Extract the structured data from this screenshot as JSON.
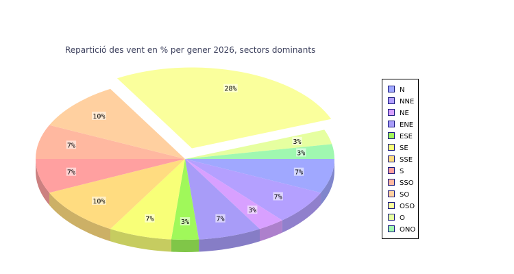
{
  "chart_data": {
    "type": "pie",
    "title": "Repartició des vent en % per gener 2026, sectors dominants",
    "slices": [
      {
        "name": "N",
        "value": 7,
        "label": "7%",
        "color": "#a0a8ff"
      },
      {
        "name": "NNE",
        "value": 7,
        "label": "7%",
        "color": "#b4a0ff"
      },
      {
        "name": "NE",
        "value": 3,
        "label": "3%",
        "color": "#d8a0ff"
      },
      {
        "name": "ENE",
        "value": 7,
        "label": "7%",
        "color": "#a89cf8"
      },
      {
        "name": "ESE",
        "value": 3,
        "label": "3%",
        "color": "#a0f85a"
      },
      {
        "name": "SE",
        "value": 7,
        "label": "7%",
        "color": "#f8ff78"
      },
      {
        "name": "SSE",
        "value": 10,
        "label": "10%",
        "color": "#ffdc80"
      },
      {
        "name": "S",
        "value": 7,
        "label": "7%",
        "color": "#ffa0a0"
      },
      {
        "name": "SSO",
        "value": 7,
        "label": "7%",
        "color": "#ffb8a0"
      },
      {
        "name": "SO",
        "value": 10,
        "label": "10%",
        "color": "#ffd0a0"
      },
      {
        "name": "OSO",
        "value": 28,
        "label": "28%",
        "color": "#faff9c"
      },
      {
        "name": "O",
        "value": 3,
        "label": "3%",
        "color": "#e6ffa0"
      },
      {
        "name": "ONO",
        "value": 3,
        "label": "3%",
        "color": "#a0f8b0"
      }
    ],
    "exploded": "OSO",
    "legend_position": "right"
  }
}
